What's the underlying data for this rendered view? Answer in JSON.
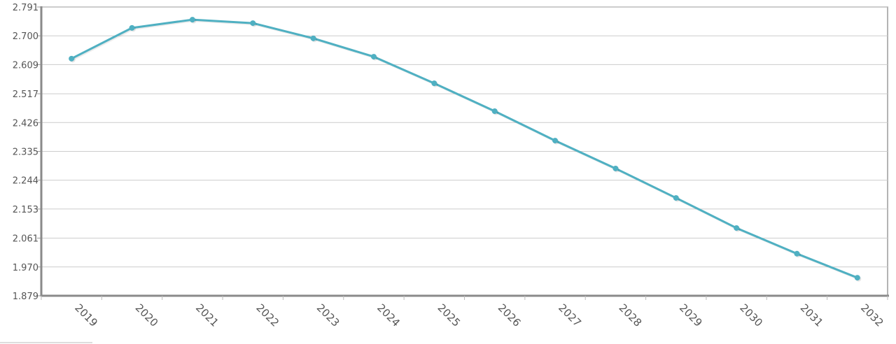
{
  "chart_data": {
    "type": "line",
    "title": "",
    "xlabel": "",
    "ylabel": "",
    "categories": [
      "2019",
      "2020",
      "2021",
      "2022",
      "2023",
      "2024",
      "2025",
      "2026",
      "2027",
      "2028",
      "2029",
      "2030",
      "2031",
      "2032"
    ],
    "series": [
      {
        "values": [
          2.628,
          2.725,
          2.751,
          2.74,
          2.692,
          2.634,
          2.55,
          2.462,
          2.369,
          2.281,
          2.188,
          2.093,
          2.012,
          1.936
        ]
      }
    ],
    "yticks": [
      "1.879",
      "1.970",
      "2.061",
      "2.153",
      "2.244",
      "2.335",
      "2.426",
      "2.517",
      "2.609",
      "2.700",
      "2.791"
    ],
    "ylim": [
      1.879,
      2.791
    ],
    "grid": true,
    "legend": "none",
    "colors": {
      "line": "#4fb0c2",
      "grid": "#cccccc",
      "axis": "#8a8a8a"
    }
  }
}
